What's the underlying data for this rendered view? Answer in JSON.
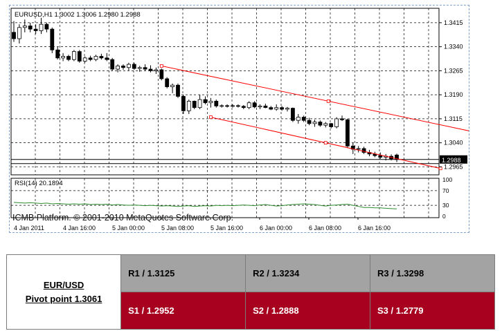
{
  "chart_data": [
    {
      "type": "candlestick",
      "title": "EURUSD,H1  1.3002 1.3006 1.2980 1.2988",
      "symbol": "EURUSD,H1",
      "ohlc_label": "1.3002 1.3006 1.2980 1.2988",
      "ylim": [
        1.294,
        1.346
      ],
      "y_ticks": [
        1.3415,
        1.334,
        1.3265,
        1.319,
        1.3115,
        1.304,
        1.2965
      ],
      "current_price": 1.2988,
      "current_price_label": "1.2988",
      "grid": true,
      "colors": {
        "bull": "#ffffff",
        "bear": "#000000",
        "channel": "#ff0000",
        "grid": "#000000"
      },
      "candles": [
        [
          1.3385,
          1.342,
          1.3355,
          1.3365
        ],
        [
          1.3365,
          1.341,
          1.335,
          1.34
        ],
        [
          1.34,
          1.3425,
          1.3385,
          1.3405
        ],
        [
          1.3405,
          1.3415,
          1.3385,
          1.3395
        ],
        [
          1.3395,
          1.341,
          1.338,
          1.339
        ],
        [
          1.339,
          1.343,
          1.338,
          1.341
        ],
        [
          1.341,
          1.3415,
          1.3385,
          1.3395
        ],
        [
          1.3395,
          1.34,
          1.332,
          1.333
        ],
        [
          1.333,
          1.334,
          1.33,
          1.3305
        ],
        [
          1.3305,
          1.332,
          1.3295,
          1.331
        ],
        [
          1.331,
          1.3315,
          1.3295,
          1.33
        ],
        [
          1.33,
          1.333,
          1.3295,
          1.3325
        ],
        [
          1.3325,
          1.333,
          1.329,
          1.3295
        ],
        [
          1.3295,
          1.331,
          1.329,
          1.3305
        ],
        [
          1.3305,
          1.3312,
          1.3295,
          1.33
        ],
        [
          1.33,
          1.3315,
          1.3295,
          1.331
        ],
        [
          1.331,
          1.3318,
          1.33,
          1.3305
        ],
        [
          1.3305,
          1.332,
          1.3295,
          1.33
        ],
        [
          1.33,
          1.3305,
          1.3265,
          1.327
        ],
        [
          1.327,
          1.3285,
          1.326,
          1.328
        ],
        [
          1.328,
          1.3285,
          1.3268,
          1.3275
        ],
        [
          1.3275,
          1.329,
          1.3265,
          1.3285
        ],
        [
          1.3285,
          1.329,
          1.3268,
          1.3272
        ],
        [
          1.3272,
          1.328,
          1.3262,
          1.3275
        ],
        [
          1.3275,
          1.3285,
          1.3265,
          1.327
        ],
        [
          1.327,
          1.3282,
          1.326,
          1.3265
        ],
        [
          1.3265,
          1.3275,
          1.3255,
          1.3268
        ],
        [
          1.3268,
          1.3272,
          1.3235,
          1.324
        ],
        [
          1.324,
          1.3245,
          1.321,
          1.3215
        ],
        [
          1.3215,
          1.3225,
          1.3195,
          1.322
        ],
        [
          1.322,
          1.3225,
          1.318,
          1.3185
        ],
        [
          1.3185,
          1.319,
          1.313,
          1.314
        ],
        [
          1.314,
          1.3175,
          1.313,
          1.317
        ],
        [
          1.317,
          1.3172,
          1.3145,
          1.315
        ],
        [
          1.315,
          1.319,
          1.3145,
          1.3175
        ],
        [
          1.3175,
          1.3185,
          1.316,
          1.3165
        ],
        [
          1.3165,
          1.318,
          1.315,
          1.317
        ],
        [
          1.317,
          1.3175,
          1.315,
          1.3155
        ],
        [
          1.3155,
          1.316,
          1.315,
          1.3156
        ],
        [
          1.3156,
          1.316,
          1.315,
          1.3154
        ],
        [
          1.3154,
          1.316,
          1.315,
          1.3156
        ],
        [
          1.3156,
          1.316,
          1.315,
          1.3154
        ],
        [
          1.3154,
          1.3158,
          1.3145,
          1.315
        ],
        [
          1.315,
          1.317,
          1.3145,
          1.3165
        ],
        [
          1.3165,
          1.317,
          1.3148,
          1.3152
        ],
        [
          1.3152,
          1.316,
          1.3145,
          1.3155
        ],
        [
          1.3155,
          1.3162,
          1.3148,
          1.315
        ],
        [
          1.315,
          1.3155,
          1.3142,
          1.3145
        ],
        [
          1.3145,
          1.316,
          1.314,
          1.315
        ],
        [
          1.315,
          1.3155,
          1.314,
          1.3145
        ],
        [
          1.3145,
          1.3152,
          1.3138,
          1.3148
        ],
        [
          1.3148,
          1.315,
          1.3105,
          1.311
        ],
        [
          1.311,
          1.313,
          1.31,
          1.312
        ],
        [
          1.312,
          1.3125,
          1.3105,
          1.311
        ],
        [
          1.311,
          1.3118,
          1.3095,
          1.31
        ],
        [
          1.31,
          1.3112,
          1.309,
          1.3105
        ],
        [
          1.3105,
          1.311,
          1.309,
          1.3095
        ],
        [
          1.3095,
          1.3105,
          1.3088,
          1.31
        ],
        [
          1.31,
          1.3102,
          1.3085,
          1.309
        ],
        [
          1.309,
          1.312,
          1.3085,
          1.3115
        ],
        [
          1.3115,
          1.3125,
          1.3108,
          1.3112
        ],
        [
          1.3112,
          1.3115,
          1.3025,
          1.303
        ],
        [
          1.303,
          1.304,
          1.3005,
          1.302
        ],
        [
          1.302,
          1.303,
          1.301,
          1.3022
        ],
        [
          1.3022,
          1.3028,
          1.3005,
          1.301
        ],
        [
          1.301,
          1.3018,
          1.2998,
          1.3005
        ],
        [
          1.3005,
          1.3012,
          1.2995,
          1.3
        ],
        [
          1.3,
          1.301,
          1.299,
          1.2995
        ],
        [
          1.2995,
          1.3005,
          1.2985,
          1.2998
        ],
        [
          1.2998,
          1.3004,
          1.2985,
          1.299
        ],
        [
          1.3002,
          1.3006,
          1.298,
          1.2988
        ]
      ],
      "channel_lines": [
        {
          "from": [
            27,
            1.328
          ],
          "to": [
            88,
            1.306
          ]
        },
        {
          "from": [
            36,
            1.312
          ],
          "to": [
            78,
            1.296
          ]
        }
      ],
      "horizontal_lines": [
        1.2988,
        1.2975
      ]
    },
    {
      "type": "line",
      "title": "RSI(14) 20.1894",
      "label": "RSI(14) 20.1894",
      "ylim": [
        0,
        100
      ],
      "y_ticks": [
        100,
        70,
        30,
        0
      ],
      "levels": [
        70,
        30
      ],
      "color": "#2e8b2e",
      "values": [
        38,
        37,
        36,
        37,
        36,
        35,
        36,
        34,
        35,
        34,
        33,
        34,
        33,
        34,
        32,
        33,
        32,
        33,
        31,
        32,
        31,
        30,
        31,
        30,
        29,
        30,
        29,
        28,
        29,
        28,
        27,
        28,
        29,
        27,
        28,
        29,
        28,
        30,
        29,
        30,
        29,
        30,
        31,
        30,
        29,
        31,
        32,
        30,
        28,
        29,
        31,
        32,
        33,
        34,
        33,
        32,
        30,
        28,
        30,
        31,
        32,
        33,
        30,
        27,
        24,
        24,
        23,
        23,
        22,
        21,
        20.1894
      ]
    }
  ],
  "watermark": "ICMB Platform. © 2001-2010 MetaQuotes Software Corp.",
  "x_labels": [
    "4 Jan 2011",
    "4 Jan 16:00",
    "5 Jan 00:00",
    "5 Jan 08:00",
    "5 Jan 16:00",
    "6 Jan 00:00",
    "6 Jan 08:00",
    "6 Jan 16:00"
  ],
  "pivot_table": {
    "pair": "EUR/USD",
    "pivot": "Pivot point 1.3061",
    "resistances": [
      "R1 / 1.3125",
      "R2 / 1.3234",
      "R3 / 1.3298"
    ],
    "supports": [
      "S1 / 1.2952",
      "S2 / 1.2888",
      "S3 / 1.2779"
    ],
    "colors": {
      "resistance_bg": "#a3a3a3",
      "support_bg": "#a8001f"
    }
  }
}
